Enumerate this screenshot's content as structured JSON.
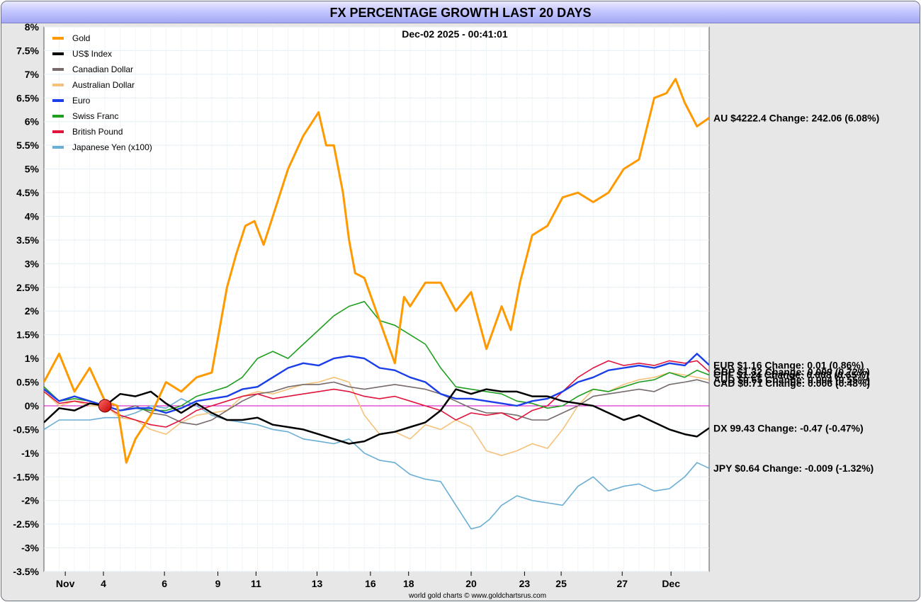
{
  "chart_data": {
    "type": "line",
    "title": "FX PERCENTAGE GROWTH LAST 20 DAYS",
    "timestamp": "Dec-02  2025 - 00:41:01",
    "footer": "world gold charts © www.goldchartsrus.com",
    "xlabel": "",
    "ylabel": "",
    "xlim": [
      0,
      21.8
    ],
    "ylim": [
      -3.5,
      8.0
    ],
    "ytick_values": [
      8,
      7.5,
      7,
      6.5,
      6,
      5.5,
      5,
      4.5,
      4,
      3.5,
      3,
      2.5,
      2,
      1.5,
      1,
      0.5,
      0,
      -0.5,
      -1,
      -1.5,
      -2,
      -2.5,
      -3,
      -3.5
    ],
    "ytick_labels": [
      "8%",
      "7.5%",
      "7%",
      "6.5%",
      "6%",
      "5.5%",
      "5%",
      "4.5%",
      "4%",
      "3.5%",
      "3%",
      "2.5%",
      "2%",
      "1.5%",
      "1%",
      "0.5%",
      "0%",
      "-0.5%",
      "-1%",
      "-1.5%",
      "-2%",
      "-2.5%",
      "-3%",
      "-3.5%"
    ],
    "xtick_values": [
      0.7,
      1.95,
      3.95,
      5.7,
      6.95,
      8.95,
      10.7,
      11.95,
      14.0,
      15.75,
      16.95,
      18.95,
      20.55
    ],
    "xtick_labels": [
      "Nov",
      "4",
      "6",
      "9",
      "11",
      "13",
      "16",
      "18",
      "20",
      "23",
      "25",
      "27",
      "Dec"
    ],
    "zero_line": 0,
    "start_marker": {
      "x": 2.0,
      "y": 0
    },
    "legend_position": "top-left",
    "series": [
      {
        "name": "Gold",
        "color": "#ff9900",
        "width": 3.0,
        "x": [
          0,
          0.5,
          1,
          1.5,
          2,
          2.4,
          2.7,
          3,
          3.5,
          4,
          4.5,
          5,
          5.5,
          6,
          6.3,
          6.6,
          6.9,
          7.2,
          7.5,
          8,
          8.5,
          9,
          9.25,
          9.5,
          9.8,
          10,
          10.2,
          10.5,
          11,
          11.5,
          11.8,
          12,
          12.5,
          13,
          13.5,
          14,
          14.5,
          15,
          15.3,
          15.6,
          16,
          16.5,
          17,
          17.5,
          18,
          18.5,
          19,
          19.5,
          20,
          20.4,
          20.7,
          21,
          21.4,
          21.8
        ],
        "values": [
          0.5,
          1.1,
          0.3,
          0.8,
          0.1,
          0.0,
          -1.2,
          -0.7,
          -0.2,
          0.5,
          0.3,
          0.6,
          0.7,
          2.5,
          3.2,
          3.8,
          3.9,
          3.4,
          4.0,
          5.0,
          5.7,
          6.2,
          5.5,
          5.5,
          4.5,
          3.5,
          2.8,
          2.7,
          1.8,
          0.9,
          2.3,
          2.1,
          2.6,
          2.6,
          2.0,
          2.4,
          1.2,
          2.1,
          1.6,
          2.6,
          3.6,
          3.8,
          4.4,
          4.5,
          4.3,
          4.5,
          5.0,
          5.2,
          6.5,
          6.6,
          6.9,
          6.4,
          5.9,
          6.08
        ],
        "label": "AU $4222.4  Change: 242.06 (6.08%)",
        "label_y": 6.08
      },
      {
        "name": "US$ Index",
        "color": "#000000",
        "width": 2.5,
        "x": [
          0,
          0.5,
          1,
          1.5,
          2,
          2.5,
          3,
          3.5,
          4,
          4.5,
          5,
          5.5,
          6,
          6.5,
          7,
          7.5,
          8,
          8.5,
          9,
          9.5,
          10,
          10.5,
          11,
          11.5,
          12,
          12.5,
          13,
          13.5,
          14,
          14.5,
          15,
          15.5,
          16,
          16.5,
          17,
          17.5,
          18,
          18.5,
          19,
          19.5,
          20,
          20.5,
          21,
          21.4,
          21.8
        ],
        "values": [
          -0.35,
          -0.05,
          -0.1,
          0.05,
          0.0,
          0.25,
          0.2,
          0.3,
          0.05,
          -0.15,
          0.05,
          -0.15,
          -0.3,
          -0.3,
          -0.25,
          -0.4,
          -0.45,
          -0.5,
          -0.6,
          -0.7,
          -0.8,
          -0.75,
          -0.6,
          -0.55,
          -0.45,
          -0.35,
          -0.1,
          0.35,
          0.25,
          0.35,
          0.3,
          0.3,
          0.2,
          0.2,
          0.1,
          0.05,
          0.0,
          -0.15,
          -0.3,
          -0.2,
          -0.35,
          -0.5,
          -0.6,
          -0.65,
          -0.47
        ],
        "label": "DX 99.43  Change: -0.47 (-0.47%)",
        "label_y": -0.47
      },
      {
        "name": "Canadian Dollar",
        "color": "#776b6b",
        "width": 1.6,
        "x": [
          0,
          0.5,
          1,
          1.5,
          2,
          2.5,
          3,
          3.5,
          4,
          4.5,
          5,
          5.5,
          6,
          6.5,
          7,
          7.5,
          8,
          8.5,
          9,
          9.5,
          10,
          10.5,
          11,
          11.5,
          12,
          12.5,
          13,
          13.5,
          14,
          14.5,
          15,
          15.5,
          16,
          16.5,
          17,
          17.5,
          18,
          18.5,
          19,
          19.5,
          20,
          20.5,
          21,
          21.4,
          21.8
        ],
        "values": [
          0.4,
          0.1,
          0.2,
          0.1,
          0.0,
          -0.1,
          0.0,
          -0.15,
          -0.2,
          -0.35,
          -0.4,
          -0.3,
          -0.1,
          0.1,
          0.25,
          0.3,
          0.4,
          0.45,
          0.45,
          0.5,
          0.4,
          0.35,
          0.4,
          0.45,
          0.4,
          0.35,
          0.25,
          0.1,
          -0.05,
          -0.15,
          -0.15,
          -0.2,
          -0.3,
          -0.3,
          -0.15,
          0.0,
          0.2,
          0.25,
          0.3,
          0.35,
          0.3,
          0.45,
          0.5,
          0.55,
          0.48
        ],
        "label": "CAD $0.71  Change: 0.006 (0.48%)",
        "label_y": 0.48
      },
      {
        "name": "Australian Dollar",
        "color": "#f5c27a",
        "width": 1.6,
        "x": [
          0,
          0.5,
          1,
          1.5,
          2,
          2.5,
          3,
          3.5,
          4,
          4.5,
          5,
          5.5,
          6,
          6.5,
          7,
          7.5,
          8,
          8.5,
          9,
          9.5,
          10,
          10.5,
          11,
          11.5,
          12,
          12.5,
          13,
          13.5,
          14,
          14.5,
          15,
          15.5,
          16,
          16.5,
          17,
          17.5,
          18,
          18.5,
          19,
          19.5,
          20,
          20.5,
          21,
          21.4,
          21.8
        ],
        "values": [
          0.3,
          0.0,
          0.1,
          0.0,
          0.0,
          -0.25,
          -0.3,
          -0.5,
          -0.6,
          -0.35,
          -0.2,
          -0.15,
          -0.1,
          0.2,
          0.3,
          0.25,
          0.35,
          0.45,
          0.5,
          0.6,
          0.5,
          -0.2,
          -0.6,
          -0.55,
          -0.7,
          -0.4,
          -0.5,
          -0.3,
          -0.45,
          -0.95,
          -1.05,
          -0.95,
          -0.8,
          -0.9,
          -0.5,
          0.0,
          0.35,
          0.3,
          0.45,
          0.55,
          0.6,
          0.7,
          0.65,
          0.6,
          0.55
        ],
        "label": "AUD $0.65  Change: 0.004 (0.55%)",
        "label_y": 0.55
      },
      {
        "name": "Euro",
        "color": "#1a3ee8",
        "width": 2.4,
        "x": [
          0,
          0.5,
          1,
          1.5,
          2,
          2.5,
          3,
          3.5,
          4,
          4.5,
          5,
          5.5,
          6,
          6.5,
          7,
          7.5,
          8,
          8.5,
          9,
          9.5,
          10,
          10.5,
          11,
          11.5,
          12,
          12.5,
          13,
          13.5,
          14,
          14.5,
          15,
          15.5,
          16,
          16.5,
          17,
          17.5,
          18,
          18.5,
          19,
          19.5,
          20,
          20.5,
          21,
          21.4,
          21.8
        ],
        "values": [
          0.35,
          0.1,
          0.2,
          0.1,
          0.0,
          -0.1,
          -0.05,
          -0.05,
          -0.15,
          -0.05,
          0.1,
          0.15,
          0.2,
          0.35,
          0.4,
          0.6,
          0.8,
          0.9,
          0.85,
          1.0,
          1.05,
          1.0,
          0.8,
          0.75,
          0.6,
          0.5,
          0.25,
          0.15,
          0.15,
          0.1,
          0.05,
          0.0,
          0.1,
          0.15,
          0.3,
          0.5,
          0.6,
          0.75,
          0.8,
          0.85,
          0.8,
          0.9,
          0.85,
          1.1,
          0.86
        ],
        "label": "EUR $1.16  Change: 0.01 (0.86%)",
        "label_y": 0.86
      },
      {
        "name": "Swiss Franc",
        "color": "#1f9e1f",
        "width": 1.6,
        "x": [
          0,
          0.5,
          1,
          1.5,
          2,
          2.5,
          3,
          3.5,
          4,
          4.5,
          5,
          5.5,
          6,
          6.5,
          7,
          7.5,
          8,
          8.5,
          9,
          9.5,
          10,
          10.5,
          11,
          11.5,
          12,
          12.5,
          13,
          13.5,
          14,
          14.5,
          15,
          15.5,
          16,
          16.5,
          17,
          17.5,
          18,
          18.5,
          19,
          19.5,
          20,
          20.5,
          21,
          21.4,
          21.8
        ],
        "values": [
          0.4,
          0.1,
          0.15,
          0.1,
          0.0,
          -0.1,
          -0.05,
          -0.1,
          -0.1,
          0.0,
          0.2,
          0.3,
          0.4,
          0.6,
          1.0,
          1.15,
          1.0,
          1.3,
          1.6,
          1.9,
          2.1,
          2.2,
          1.8,
          1.7,
          1.5,
          1.3,
          0.8,
          0.4,
          0.35,
          0.3,
          0.25,
          0.1,
          0.05,
          -0.05,
          0.0,
          0.2,
          0.35,
          0.3,
          0.4,
          0.5,
          0.55,
          0.7,
          0.6,
          0.75,
          0.65
        ],
        "label": "CHF $1.24  Change: 0.008 (0.65%)",
        "label_y": 0.66
      },
      {
        "name": "British Pound",
        "color": "#e0143c",
        "width": 1.6,
        "x": [
          0,
          0.5,
          1,
          1.5,
          2,
          2.5,
          3,
          3.5,
          4,
          4.5,
          5,
          5.5,
          6,
          6.5,
          7,
          7.5,
          8,
          8.5,
          9,
          9.5,
          10,
          10.5,
          11,
          11.5,
          12,
          12.5,
          13,
          13.5,
          14,
          14.5,
          15,
          15.5,
          16,
          16.5,
          17,
          17.5,
          18,
          18.5,
          19,
          19.5,
          20,
          20.5,
          21,
          21.4,
          21.8
        ],
        "values": [
          0.3,
          0.05,
          0.1,
          0.05,
          0.0,
          -0.2,
          -0.3,
          -0.4,
          -0.45,
          -0.3,
          -0.1,
          0.0,
          0.1,
          0.2,
          0.25,
          0.15,
          0.2,
          0.25,
          0.3,
          0.35,
          0.3,
          0.2,
          0.15,
          0.2,
          0.1,
          0.0,
          -0.1,
          -0.3,
          -0.15,
          -0.2,
          -0.15,
          -0.3,
          -0.1,
          0.0,
          0.3,
          0.6,
          0.8,
          0.95,
          0.85,
          0.9,
          0.85,
          0.95,
          0.9,
          0.95,
          0.72
        ],
        "label": "GBP $1.32  Change: 0.009 (0.72%)",
        "label_y": 0.72
      },
      {
        "name": "Japanese Yen (x100)",
        "color": "#6aaed3",
        "width": 1.6,
        "x": [
          0,
          0.5,
          1,
          1.5,
          2,
          2.5,
          3,
          3.5,
          4,
          4.5,
          5,
          5.5,
          6,
          6.5,
          7,
          7.5,
          8,
          8.5,
          9,
          9.5,
          10,
          10.5,
          11,
          11.5,
          12,
          12.5,
          13,
          13.5,
          14,
          14.3,
          14.6,
          15,
          15.5,
          16,
          16.5,
          17,
          17.5,
          18,
          18.5,
          19,
          19.5,
          20,
          20.5,
          21,
          21.4,
          21.8
        ],
        "values": [
          -0.5,
          -0.3,
          -0.3,
          -0.3,
          -0.25,
          -0.25,
          -0.15,
          0.0,
          -0.05,
          0.15,
          0.0,
          -0.2,
          -0.3,
          -0.35,
          -0.4,
          -0.5,
          -0.55,
          -0.7,
          -0.75,
          -0.8,
          -0.7,
          -1.0,
          -1.15,
          -1.2,
          -1.45,
          -1.55,
          -1.6,
          -2.1,
          -2.6,
          -2.55,
          -2.4,
          -2.1,
          -1.9,
          -2.0,
          -2.05,
          -2.1,
          -1.7,
          -1.5,
          -1.8,
          -1.7,
          -1.65,
          -1.8,
          -1.75,
          -1.5,
          -1.2,
          -1.32
        ],
        "label": "JPY $0.64  Change: -0.009 (-1.32%)",
        "label_y": -1.32
      }
    ]
  }
}
